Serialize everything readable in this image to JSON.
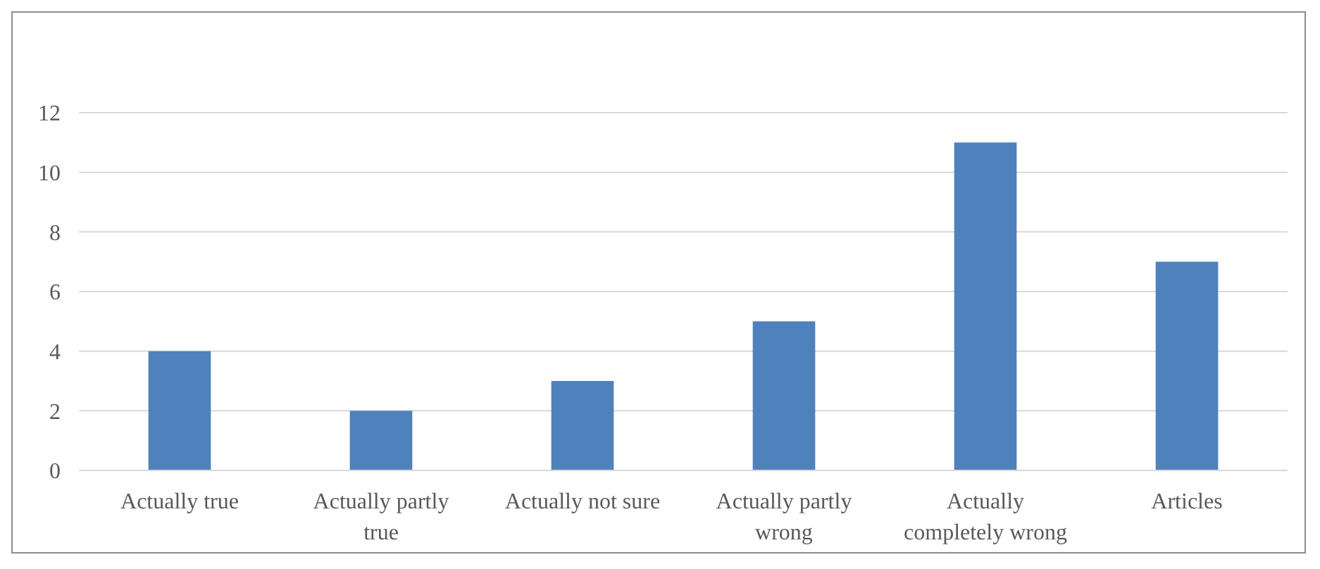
{
  "chart_data": {
    "type": "bar",
    "categories": [
      "Actually true",
      "Actually partly true",
      "Actually not sure",
      "Actually partly wrong",
      "Actually completely wrong",
      "Articles"
    ],
    "values": [
      4,
      2,
      3,
      5,
      11,
      7
    ],
    "color": "#4f81bd",
    "ylim": [
      0,
      12
    ],
    "yticks": [
      0,
      2,
      4,
      6,
      8,
      10,
      12
    ],
    "grid": "y"
  }
}
